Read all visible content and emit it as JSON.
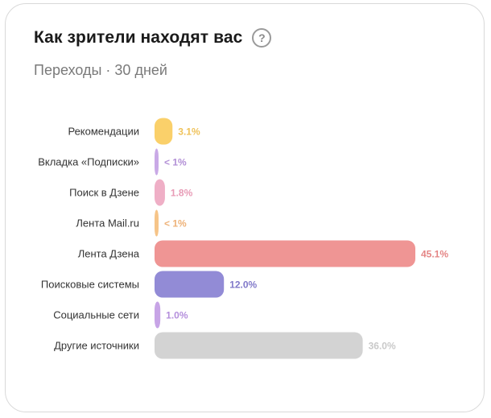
{
  "card": {
    "title": "Как зрители находят вас",
    "subtitle": "Переходы · 30 дней",
    "help_icon": "question-circle-icon"
  },
  "chart_data": {
    "type": "bar",
    "orientation": "horizontal",
    "grid": false,
    "legend": "none",
    "xlim": [
      0,
      45.1
    ],
    "categories": [
      "Рекомендации",
      "Вкладка «Подписки»",
      "Поиск в Дзене",
      "Лента Mail.ru",
      "Лента Дзена",
      "Поисковые системы",
      "Социальные сети",
      "Другие источники"
    ],
    "values": [
      3.1,
      0.5,
      1.8,
      0.5,
      45.1,
      12.0,
      1.0,
      36.0
    ],
    "value_labels": [
      "3.1%",
      "< 1%",
      "1.8%",
      "< 1%",
      "45.1%",
      "12.0%",
      "1.0%",
      "36.0%"
    ],
    "colors": [
      "#fad06a",
      "#c9a9e6",
      "#efafc6",
      "#f6c488",
      "#ef9594",
      "#928bd6",
      "#c7a4e6",
      "#d3d3d3"
    ],
    "label_colors": [
      "#efc25a",
      "#b28fd6",
      "#e89bb6",
      "#eeb278",
      "#e48585",
      "#8179c9",
      "#b48fdc",
      "#c9c9c9"
    ]
  }
}
